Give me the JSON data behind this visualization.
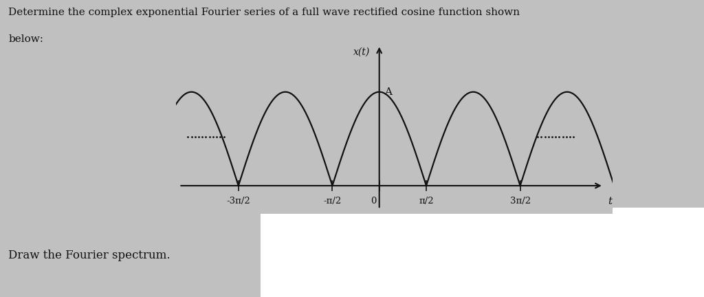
{
  "title_text_line1": "Determine the complex exponential Fourier series of a full wave rectified cosine function shown",
  "title_text_line2": "below:",
  "xlabel": "t",
  "ylabel": "x(t)",
  "amplitude_label": "A",
  "tick_labels": [
    "-3π/2",
    "-π/2",
    "0",
    "π/2",
    "3π/2"
  ],
  "tick_positions": [
    -4.71238898,
    -1.57079633,
    0,
    1.57079633,
    4.71238898
  ],
  "background_color": "#c0c0c0",
  "curve_color": "#111111",
  "axes_color": "#111111",
  "text_color": "#111111",
  "dot_color": "#111111",
  "white_box_color": "#ffffff",
  "bottom_text": "Draw the Fourier spectrum.",
  "xlim": [
    -6.8,
    7.8
  ],
  "ylim": [
    -0.3,
    1.6
  ],
  "amplitude": 1.0,
  "pi": 3.14159265358979
}
